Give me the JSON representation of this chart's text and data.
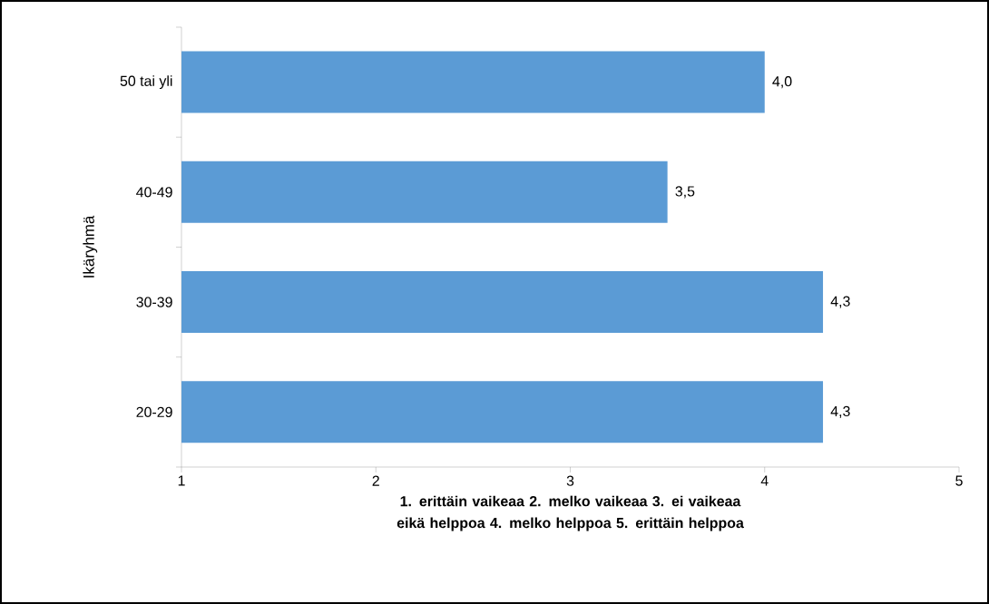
{
  "chart_data": {
    "type": "bar",
    "orientation": "horizontal",
    "categories": [
      "50 tai yli",
      "40-49",
      "30-39",
      "20-29"
    ],
    "values": [
      4.0,
      3.5,
      4.3,
      4.3
    ],
    "value_labels": [
      "4,0",
      "3,5",
      "4,3",
      "4,3"
    ],
    "color": "#5b9bd5",
    "xlim": [
      1,
      5
    ],
    "xticks": [
      1,
      2,
      3,
      4,
      5
    ],
    "xlabel": "1. erittäin vaikeaa 2. melko vaikeaa 3. ei vaikeaa eikä helppoa 4. melko helppoa 5. erittäin helppoa",
    "ylabel": "Ikäryhmä"
  }
}
